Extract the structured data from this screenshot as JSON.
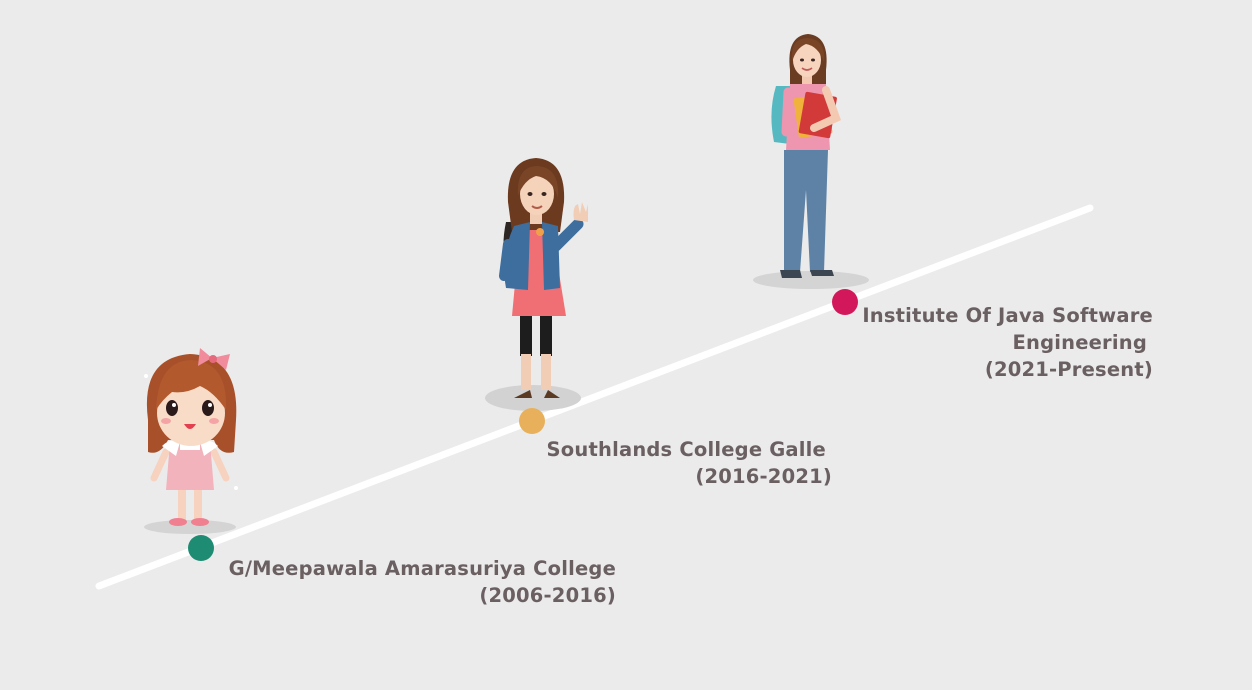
{
  "timeline": {
    "line_color": "#ffffff",
    "stages": [
      {
        "figure": "child-girl-illustration",
        "dot_color": "#1d8c73",
        "lines": [
          "G/Meepawala Amarasuriya College",
          "(2006-2016)"
        ]
      },
      {
        "figure": "teen-girl-waving-illustration",
        "dot_color": "#e8b05a",
        "lines": [
          "Southlands College Galle",
          "(2016-2021)"
        ]
      },
      {
        "figure": "student-with-books-illustration",
        "dot_color": "#d2185a",
        "lines": [
          "Institute Of Java Software",
          "Engineering",
          "(2021-Present)"
        ]
      }
    ]
  }
}
